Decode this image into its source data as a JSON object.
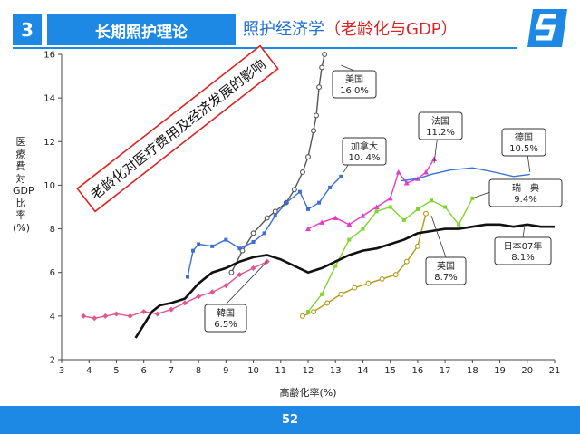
{
  "header": {
    "section_number": "3",
    "section_title": "长期照护理论",
    "subtitle_main": "照护经济学",
    "subtitle_open": "（",
    "subtitle_highlight": "老龄化与GDP",
    "subtitle_close": "）"
  },
  "footer": {
    "page_number": "52"
  },
  "colors": {
    "accent": "#1e88e5",
    "highlight": "#e02020"
  },
  "logo": {
    "icon": "s-logo-icon"
  },
  "chart_data": {
    "type": "line",
    "xlabel": "高齢化率(%)",
    "ylabel": "医療費対GDP比率(%)",
    "xlim": [
      3,
      21
    ],
    "ylim": [
      2,
      16
    ],
    "xticks": [
      3,
      4,
      5,
      6,
      7,
      8,
      9,
      10,
      11,
      12,
      13,
      14,
      15,
      16,
      17,
      18,
      19,
      20,
      21
    ],
    "yticks": [
      2,
      4,
      6,
      8,
      10,
      12,
      14,
      16
    ],
    "grid": false,
    "annotation_box": "老龄化对医疗费用及经济发展的影响",
    "series": [
      {
        "name": "美国",
        "label": "美国\n16.0%",
        "color": "#555555",
        "marker": "circle",
        "x": [
          9.2,
          9.6,
          10.0,
          10.5,
          10.8,
          11.2,
          11.5,
          11.8,
          12.0,
          12.2,
          12.3,
          12.4,
          12.5,
          12.6
        ],
        "y": [
          6.0,
          7.0,
          7.8,
          8.5,
          8.8,
          9.2,
          9.8,
          10.6,
          11.3,
          12.5,
          13.2,
          14.5,
          15.4,
          16.0
        ]
      },
      {
        "name": "加拿大",
        "label": "加拿大\n10. 4%",
        "color": "#3b6fd4",
        "marker": "square",
        "x": [
          7.6,
          7.8,
          8.0,
          8.5,
          9.0,
          9.5,
          10.0,
          10.4,
          10.8,
          11.2,
          11.7,
          12.0,
          12.4,
          12.8,
          13.2
        ],
        "y": [
          5.8,
          7.0,
          7.3,
          7.2,
          7.5,
          7.1,
          7.4,
          7.8,
          8.6,
          9.2,
          9.7,
          8.9,
          9.2,
          9.9,
          10.4
        ]
      },
      {
        "name": "法国",
        "label": "法国\n11.2%",
        "color": "#e33cc9",
        "marker": "triangle",
        "x": [
          12.0,
          12.5,
          13.0,
          13.5,
          14.0,
          14.5,
          15.0,
          15.3,
          15.6,
          16.0,
          16.3,
          16.6
        ],
        "y": [
          8.0,
          8.3,
          8.5,
          8.2,
          8.6,
          9.0,
          9.4,
          10.6,
          10.1,
          10.3,
          10.6,
          11.2
        ]
      },
      {
        "name": "德国",
        "label": "德国\n10.5%",
        "color": "#3b6fd4",
        "marker": "none",
        "x": [
          15.4,
          16.0,
          16.5,
          17.2,
          18.0,
          18.8,
          19.5,
          20.1
        ],
        "y": [
          10.2,
          10.3,
          10.5,
          10.7,
          10.8,
          10.6,
          10.4,
          10.5
        ]
      },
      {
        "name": "瑞典",
        "label": "瑞　典\n9.4%",
        "color": "#7fd62a",
        "marker": "square",
        "x": [
          12.0,
          12.5,
          13.0,
          13.5,
          14.0,
          14.5,
          15.0,
          15.5,
          16.0,
          16.5,
          17.0,
          17.5,
          18.0
        ],
        "y": [
          4.2,
          5.0,
          6.3,
          7.5,
          8.0,
          8.8,
          9.0,
          8.4,
          8.9,
          9.3,
          9.0,
          8.2,
          9.4
        ]
      },
      {
        "name": "英国",
        "label": "英国\n8.7%",
        "color": "#b59a18",
        "marker": "circle",
        "x": [
          11.8,
          12.2,
          12.7,
          13.2,
          13.7,
          14.2,
          14.7,
          15.2,
          15.6,
          16.0,
          16.3
        ],
        "y": [
          4.0,
          4.2,
          4.6,
          5.0,
          5.3,
          5.5,
          5.7,
          5.9,
          6.5,
          7.2,
          8.7
        ]
      },
      {
        "name": "韩国",
        "label": "韓国\n6.5%",
        "color": "#e2558e",
        "marker": "diamond",
        "x": [
          3.8,
          4.2,
          4.6,
          5.0,
          5.5,
          6.0,
          6.5,
          7.0,
          7.5,
          8.0,
          8.5,
          9.0,
          9.5,
          10.0,
          10.5
        ],
        "y": [
          4.0,
          3.9,
          4.0,
          4.1,
          4.0,
          4.2,
          4.1,
          4.3,
          4.6,
          4.9,
          5.1,
          5.4,
          5.9,
          6.2,
          6.5
        ]
      },
      {
        "name": "日本",
        "label": "日本07年\n8.1%",
        "color": "#111111",
        "marker": "none",
        "x": [
          5.7,
          6.0,
          6.3,
          6.6,
          7.0,
          7.5,
          8.0,
          8.5,
          9.0,
          9.5,
          10.0,
          10.5,
          11.0,
          11.5,
          12.0,
          12.5,
          13.0,
          13.5,
          14.0,
          14.5,
          15.0,
          15.5,
          16.0,
          16.5,
          17.0,
          17.5,
          18.0,
          18.5,
          19.0,
          19.5,
          20.0,
          20.5,
          21.0
        ],
        "y": [
          3.0,
          3.6,
          4.2,
          4.5,
          4.6,
          4.8,
          5.5,
          6.0,
          6.2,
          6.5,
          6.7,
          6.8,
          6.6,
          6.3,
          6.0,
          6.2,
          6.5,
          6.8,
          7.0,
          7.1,
          7.3,
          7.5,
          7.8,
          7.9,
          8.0,
          8.0,
          8.1,
          8.2,
          8.2,
          8.1,
          8.2,
          8.1,
          8.1
        ]
      }
    ]
  }
}
